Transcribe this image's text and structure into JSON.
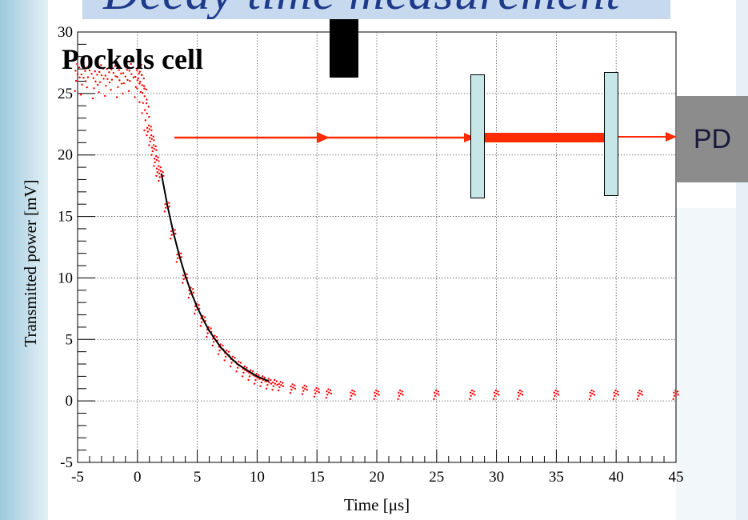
{
  "slide": {
    "title": "Decay time measurement"
  },
  "diagram": {
    "pockels_label": "Pockels cell",
    "detector_label": "PD",
    "beam_color": "#ff2a00",
    "mirror_color": "#c6e6e8",
    "detector_color": "#8c8c8c"
  },
  "chart_data": {
    "type": "scatter",
    "title": "",
    "xlabel": "Time [μs]",
    "ylabel": "Transmitted power [mV]",
    "xlim": [
      -5,
      45
    ],
    "ylim": [
      -5,
      30
    ],
    "xticks": [
      -5,
      0,
      5,
      10,
      15,
      20,
      25,
      30,
      35,
      40,
      45
    ],
    "yticks": [
      -5,
      0,
      5,
      10,
      15,
      20,
      25,
      30
    ],
    "x_minor_step": 1,
    "y_minor_step": 1,
    "grid": true,
    "legend": "none",
    "series": [
      {
        "kind": "scatter",
        "color": "#ff0000",
        "x": [
          -5,
          -4.5,
          -4,
          -3.5,
          -3,
          -2.5,
          -2,
          -1.5,
          -1,
          -0.5,
          0,
          0.2,
          0.4,
          0.6,
          0.8,
          1,
          1.2,
          1.4,
          1.6,
          1.8,
          2,
          2.5,
          3,
          3.5,
          4,
          4.5,
          5,
          5.5,
          6,
          6.5,
          7,
          7.5,
          8,
          8.5,
          9,
          9.5,
          10,
          10.5,
          11,
          11.5,
          12,
          13,
          14,
          15,
          16,
          18,
          20,
          22,
          25,
          28,
          30,
          32,
          35,
          38,
          40,
          42,
          45
        ],
        "y": [
          26.3,
          26.0,
          26.6,
          25.7,
          26.2,
          25.9,
          26.4,
          25.8,
          26.1,
          26.3,
          25.8,
          26.5,
          25.4,
          24.5,
          23.1,
          22.0,
          21.2,
          20.4,
          19.5,
          18.7,
          18.3,
          15.8,
          13.6,
          11.7,
          10.0,
          8.8,
          7.5,
          6.5,
          5.6,
          4.9,
          4.2,
          3.7,
          3.2,
          2.8,
          2.4,
          2.1,
          1.8,
          1.6,
          1.4,
          1.3,
          1.2,
          1.0,
          0.9,
          0.7,
          0.6,
          0.5,
          0.5,
          0.5,
          0.5,
          0.5,
          0.5,
          0.5,
          0.5,
          0.5,
          0.5,
          0.5,
          0.5
        ]
      },
      {
        "kind": "line",
        "color": "#000000",
        "x": [
          2,
          2.5,
          3,
          3.5,
          4,
          4.5,
          5,
          5.5,
          6,
          6.5,
          7,
          7.5,
          8,
          8.5,
          9,
          9.5,
          10,
          10.5,
          11
        ],
        "y": [
          18.5,
          15.9,
          13.7,
          11.8,
          10.2,
          8.8,
          7.6,
          6.6,
          5.7,
          5.0,
          4.3,
          3.8,
          3.3,
          2.9,
          2.6,
          2.3,
          2.0,
          1.8,
          1.6
        ]
      }
    ]
  }
}
